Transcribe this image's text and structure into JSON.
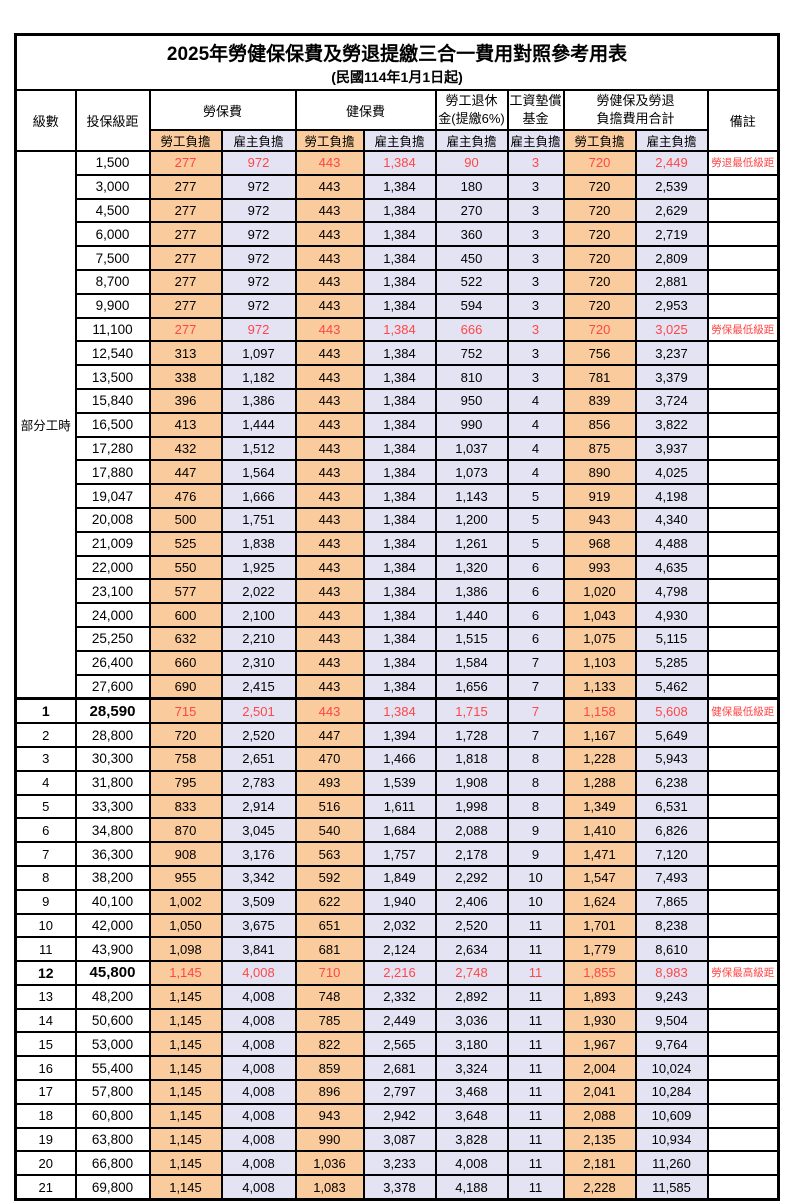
{
  "title": "2025年勞健保保費及勞退提繳三合一費用對照參考用表",
  "subtitle": "(民國114年1月1日起)",
  "header": {
    "level": "級數",
    "salary": "投保級距",
    "labor": "勞保費",
    "health": "健保費",
    "pension_line1": "勞工退休",
    "pension_line2": "金(提繳6%)",
    "fund_line1": "工資墊償",
    "fund_line2": "基金",
    "total_line1": "勞健保及勞退",
    "total_line2": "負擔費用合計",
    "note": "備註",
    "employee": "勞工負擔",
    "employer": "雇主負擔"
  },
  "group": {
    "label": "部分工時",
    "rowspan": 23
  },
  "colors": {
    "employee_bg": "#FACB9C",
    "employer_bg": "#E4E3F3",
    "highlight_text": "#FF4646",
    "border": "#000000"
  },
  "rows": [
    {
      "level": "",
      "salary": "1,500",
      "labor_emp": "277",
      "labor_er": "972",
      "health_emp": "443",
      "health_er": "1,384",
      "pension_er": "90",
      "fund_er": "3",
      "total_emp": "720",
      "total_er": "2,449",
      "note": "勞退最低級距",
      "highlight": true
    },
    {
      "level": "",
      "salary": "3,000",
      "labor_emp": "277",
      "labor_er": "972",
      "health_emp": "443",
      "health_er": "1,384",
      "pension_er": "180",
      "fund_er": "3",
      "total_emp": "720",
      "total_er": "2,539",
      "note": ""
    },
    {
      "level": "",
      "salary": "4,500",
      "labor_emp": "277",
      "labor_er": "972",
      "health_emp": "443",
      "health_er": "1,384",
      "pension_er": "270",
      "fund_er": "3",
      "total_emp": "720",
      "total_er": "2,629",
      "note": ""
    },
    {
      "level": "",
      "salary": "6,000",
      "labor_emp": "277",
      "labor_er": "972",
      "health_emp": "443",
      "health_er": "1,384",
      "pension_er": "360",
      "fund_er": "3",
      "total_emp": "720",
      "total_er": "2,719",
      "note": ""
    },
    {
      "level": "",
      "salary": "7,500",
      "labor_emp": "277",
      "labor_er": "972",
      "health_emp": "443",
      "health_er": "1,384",
      "pension_er": "450",
      "fund_er": "3",
      "total_emp": "720",
      "total_er": "2,809",
      "note": ""
    },
    {
      "level": "",
      "salary": "8,700",
      "labor_emp": "277",
      "labor_er": "972",
      "health_emp": "443",
      "health_er": "1,384",
      "pension_er": "522",
      "fund_er": "3",
      "total_emp": "720",
      "total_er": "2,881",
      "note": ""
    },
    {
      "level": "",
      "salary": "9,900",
      "labor_emp": "277",
      "labor_er": "972",
      "health_emp": "443",
      "health_er": "1,384",
      "pension_er": "594",
      "fund_er": "3",
      "total_emp": "720",
      "total_er": "2,953",
      "note": ""
    },
    {
      "level": "",
      "salary": "11,100",
      "labor_emp": "277",
      "labor_er": "972",
      "health_emp": "443",
      "health_er": "1,384",
      "pension_er": "666",
      "fund_er": "3",
      "total_emp": "720",
      "total_er": "3,025",
      "note": "勞保最低級距",
      "highlight": true
    },
    {
      "level": "",
      "salary": "12,540",
      "labor_emp": "313",
      "labor_er": "1,097",
      "health_emp": "443",
      "health_er": "1,384",
      "pension_er": "752",
      "fund_er": "3",
      "total_emp": "756",
      "total_er": "3,237",
      "note": ""
    },
    {
      "level": "",
      "salary": "13,500",
      "labor_emp": "338",
      "labor_er": "1,182",
      "health_emp": "443",
      "health_er": "1,384",
      "pension_er": "810",
      "fund_er": "3",
      "total_emp": "781",
      "total_er": "3,379",
      "note": ""
    },
    {
      "level": "",
      "salary": "15,840",
      "labor_emp": "396",
      "labor_er": "1,386",
      "health_emp": "443",
      "health_er": "1,384",
      "pension_er": "950",
      "fund_er": "4",
      "total_emp": "839",
      "total_er": "3,724",
      "note": ""
    },
    {
      "level": "",
      "salary": "16,500",
      "labor_emp": "413",
      "labor_er": "1,444",
      "health_emp": "443",
      "health_er": "1,384",
      "pension_er": "990",
      "fund_er": "4",
      "total_emp": "856",
      "total_er": "3,822",
      "note": ""
    },
    {
      "level": "",
      "salary": "17,280",
      "labor_emp": "432",
      "labor_er": "1,512",
      "health_emp": "443",
      "health_er": "1,384",
      "pension_er": "1,037",
      "fund_er": "4",
      "total_emp": "875",
      "total_er": "3,937",
      "note": ""
    },
    {
      "level": "",
      "salary": "17,880",
      "labor_emp": "447",
      "labor_er": "1,564",
      "health_emp": "443",
      "health_er": "1,384",
      "pension_er": "1,073",
      "fund_er": "4",
      "total_emp": "890",
      "total_er": "4,025",
      "note": ""
    },
    {
      "level": "",
      "salary": "19,047",
      "labor_emp": "476",
      "labor_er": "1,666",
      "health_emp": "443",
      "health_er": "1,384",
      "pension_er": "1,143",
      "fund_er": "5",
      "total_emp": "919",
      "total_er": "4,198",
      "note": ""
    },
    {
      "level": "",
      "salary": "20,008",
      "labor_emp": "500",
      "labor_er": "1,751",
      "health_emp": "443",
      "health_er": "1,384",
      "pension_er": "1,200",
      "fund_er": "5",
      "total_emp": "943",
      "total_er": "4,340",
      "note": ""
    },
    {
      "level": "",
      "salary": "21,009",
      "labor_emp": "525",
      "labor_er": "1,838",
      "health_emp": "443",
      "health_er": "1,384",
      "pension_er": "1,261",
      "fund_er": "5",
      "total_emp": "968",
      "total_er": "4,488",
      "note": ""
    },
    {
      "level": "",
      "salary": "22,000",
      "labor_emp": "550",
      "labor_er": "1,925",
      "health_emp": "443",
      "health_er": "1,384",
      "pension_er": "1,320",
      "fund_er": "6",
      "total_emp": "993",
      "total_er": "4,635",
      "note": ""
    },
    {
      "level": "",
      "salary": "23,100",
      "labor_emp": "577",
      "labor_er": "2,022",
      "health_emp": "443",
      "health_er": "1,384",
      "pension_er": "1,386",
      "fund_er": "6",
      "total_emp": "1,020",
      "total_er": "4,798",
      "note": ""
    },
    {
      "level": "",
      "salary": "24,000",
      "labor_emp": "600",
      "labor_er": "2,100",
      "health_emp": "443",
      "health_er": "1,384",
      "pension_er": "1,440",
      "fund_er": "6",
      "total_emp": "1,043",
      "total_er": "4,930",
      "note": ""
    },
    {
      "level": "",
      "salary": "25,250",
      "labor_emp": "632",
      "labor_er": "2,210",
      "health_emp": "443",
      "health_er": "1,384",
      "pension_er": "1,515",
      "fund_er": "6",
      "total_emp": "1,075",
      "total_er": "5,115",
      "note": ""
    },
    {
      "level": "",
      "salary": "26,400",
      "labor_emp": "660",
      "labor_er": "2,310",
      "health_emp": "443",
      "health_er": "1,384",
      "pension_er": "1,584",
      "fund_er": "7",
      "total_emp": "1,103",
      "total_er": "5,285",
      "note": ""
    },
    {
      "level": "",
      "salary": "27,600",
      "labor_emp": "690",
      "labor_er": "2,415",
      "health_emp": "443",
      "health_er": "1,384",
      "pension_er": "1,656",
      "fund_er": "7",
      "total_emp": "1,133",
      "total_er": "5,462",
      "note": ""
    },
    {
      "level": "1",
      "salary": "28,590",
      "labor_emp": "715",
      "labor_er": "2,501",
      "health_emp": "443",
      "health_er": "1,384",
      "pension_er": "1,715",
      "fund_er": "7",
      "total_emp": "1,158",
      "total_er": "5,608",
      "note": "健保最低級距",
      "highlight": true,
      "bold": true,
      "thick": true
    },
    {
      "level": "2",
      "salary": "28,800",
      "labor_emp": "720",
      "labor_er": "2,520",
      "health_emp": "447",
      "health_er": "1,394",
      "pension_er": "1,728",
      "fund_er": "7",
      "total_emp": "1,167",
      "total_er": "5,649",
      "note": ""
    },
    {
      "level": "3",
      "salary": "30,300",
      "labor_emp": "758",
      "labor_er": "2,651",
      "health_emp": "470",
      "health_er": "1,466",
      "pension_er": "1,818",
      "fund_er": "8",
      "total_emp": "1,228",
      "total_er": "5,943",
      "note": ""
    },
    {
      "level": "4",
      "salary": "31,800",
      "labor_emp": "795",
      "labor_er": "2,783",
      "health_emp": "493",
      "health_er": "1,539",
      "pension_er": "1,908",
      "fund_er": "8",
      "total_emp": "1,288",
      "total_er": "6,238",
      "note": ""
    },
    {
      "level": "5",
      "salary": "33,300",
      "labor_emp": "833",
      "labor_er": "2,914",
      "health_emp": "516",
      "health_er": "1,611",
      "pension_er": "1,998",
      "fund_er": "8",
      "total_emp": "1,349",
      "total_er": "6,531",
      "note": ""
    },
    {
      "level": "6",
      "salary": "34,800",
      "labor_emp": "870",
      "labor_er": "3,045",
      "health_emp": "540",
      "health_er": "1,684",
      "pension_er": "2,088",
      "fund_er": "9",
      "total_emp": "1,410",
      "total_er": "6,826",
      "note": ""
    },
    {
      "level": "7",
      "salary": "36,300",
      "labor_emp": "908",
      "labor_er": "3,176",
      "health_emp": "563",
      "health_er": "1,757",
      "pension_er": "2,178",
      "fund_er": "9",
      "total_emp": "1,471",
      "total_er": "7,120",
      "note": ""
    },
    {
      "level": "8",
      "salary": "38,200",
      "labor_emp": "955",
      "labor_er": "3,342",
      "health_emp": "592",
      "health_er": "1,849",
      "pension_er": "2,292",
      "fund_er": "10",
      "total_emp": "1,547",
      "total_er": "7,493",
      "note": ""
    },
    {
      "level": "9",
      "salary": "40,100",
      "labor_emp": "1,002",
      "labor_er": "3,509",
      "health_emp": "622",
      "health_er": "1,940",
      "pension_er": "2,406",
      "fund_er": "10",
      "total_emp": "1,624",
      "total_er": "7,865",
      "note": ""
    },
    {
      "level": "10",
      "salary": "42,000",
      "labor_emp": "1,050",
      "labor_er": "3,675",
      "health_emp": "651",
      "health_er": "2,032",
      "pension_er": "2,520",
      "fund_er": "11",
      "total_emp": "1,701",
      "total_er": "8,238",
      "note": ""
    },
    {
      "level": "11",
      "salary": "43,900",
      "labor_emp": "1,098",
      "labor_er": "3,841",
      "health_emp": "681",
      "health_er": "2,124",
      "pension_er": "2,634",
      "fund_er": "11",
      "total_emp": "1,779",
      "total_er": "8,610",
      "note": ""
    },
    {
      "level": "12",
      "salary": "45,800",
      "labor_emp": "1,145",
      "labor_er": "4,008",
      "health_emp": "710",
      "health_er": "2,216",
      "pension_er": "2,748",
      "fund_er": "11",
      "total_emp": "1,855",
      "total_er": "8,983",
      "note": "勞保最高級距",
      "highlight": true,
      "bold": true
    },
    {
      "level": "13",
      "salary": "48,200",
      "labor_emp": "1,145",
      "labor_er": "4,008",
      "health_emp": "748",
      "health_er": "2,332",
      "pension_er": "2,892",
      "fund_er": "11",
      "total_emp": "1,893",
      "total_er": "9,243",
      "note": ""
    },
    {
      "level": "14",
      "salary": "50,600",
      "labor_emp": "1,145",
      "labor_er": "4,008",
      "health_emp": "785",
      "health_er": "2,449",
      "pension_er": "3,036",
      "fund_er": "11",
      "total_emp": "1,930",
      "total_er": "9,504",
      "note": ""
    },
    {
      "level": "15",
      "salary": "53,000",
      "labor_emp": "1,145",
      "labor_er": "4,008",
      "health_emp": "822",
      "health_er": "2,565",
      "pension_er": "3,180",
      "fund_er": "11",
      "total_emp": "1,967",
      "total_er": "9,764",
      "note": ""
    },
    {
      "level": "16",
      "salary": "55,400",
      "labor_emp": "1,145",
      "labor_er": "4,008",
      "health_emp": "859",
      "health_er": "2,681",
      "pension_er": "3,324",
      "fund_er": "11",
      "total_emp": "2,004",
      "total_er": "10,024",
      "note": ""
    },
    {
      "level": "17",
      "salary": "57,800",
      "labor_emp": "1,145",
      "labor_er": "4,008",
      "health_emp": "896",
      "health_er": "2,797",
      "pension_er": "3,468",
      "fund_er": "11",
      "total_emp": "2,041",
      "total_er": "10,284",
      "note": ""
    },
    {
      "level": "18",
      "salary": "60,800",
      "labor_emp": "1,145",
      "labor_er": "4,008",
      "health_emp": "943",
      "health_er": "2,942",
      "pension_er": "3,648",
      "fund_er": "11",
      "total_emp": "2,088",
      "total_er": "10,609",
      "note": ""
    },
    {
      "level": "19",
      "salary": "63,800",
      "labor_emp": "1,145",
      "labor_er": "4,008",
      "health_emp": "990",
      "health_er": "3,087",
      "pension_er": "3,828",
      "fund_er": "11",
      "total_emp": "2,135",
      "total_er": "10,934",
      "note": ""
    },
    {
      "level": "20",
      "salary": "66,800",
      "labor_emp": "1,145",
      "labor_er": "4,008",
      "health_emp": "1,036",
      "health_er": "3,233",
      "pension_er": "4,008",
      "fund_er": "11",
      "total_emp": "2,181",
      "total_er": "11,260",
      "note": ""
    },
    {
      "level": "21",
      "salary": "69,800",
      "labor_emp": "1,145",
      "labor_er": "4,008",
      "health_emp": "1,083",
      "health_er": "3,378",
      "pension_er": "4,188",
      "fund_er": "11",
      "total_emp": "2,228",
      "total_er": "11,585",
      "note": ""
    }
  ]
}
